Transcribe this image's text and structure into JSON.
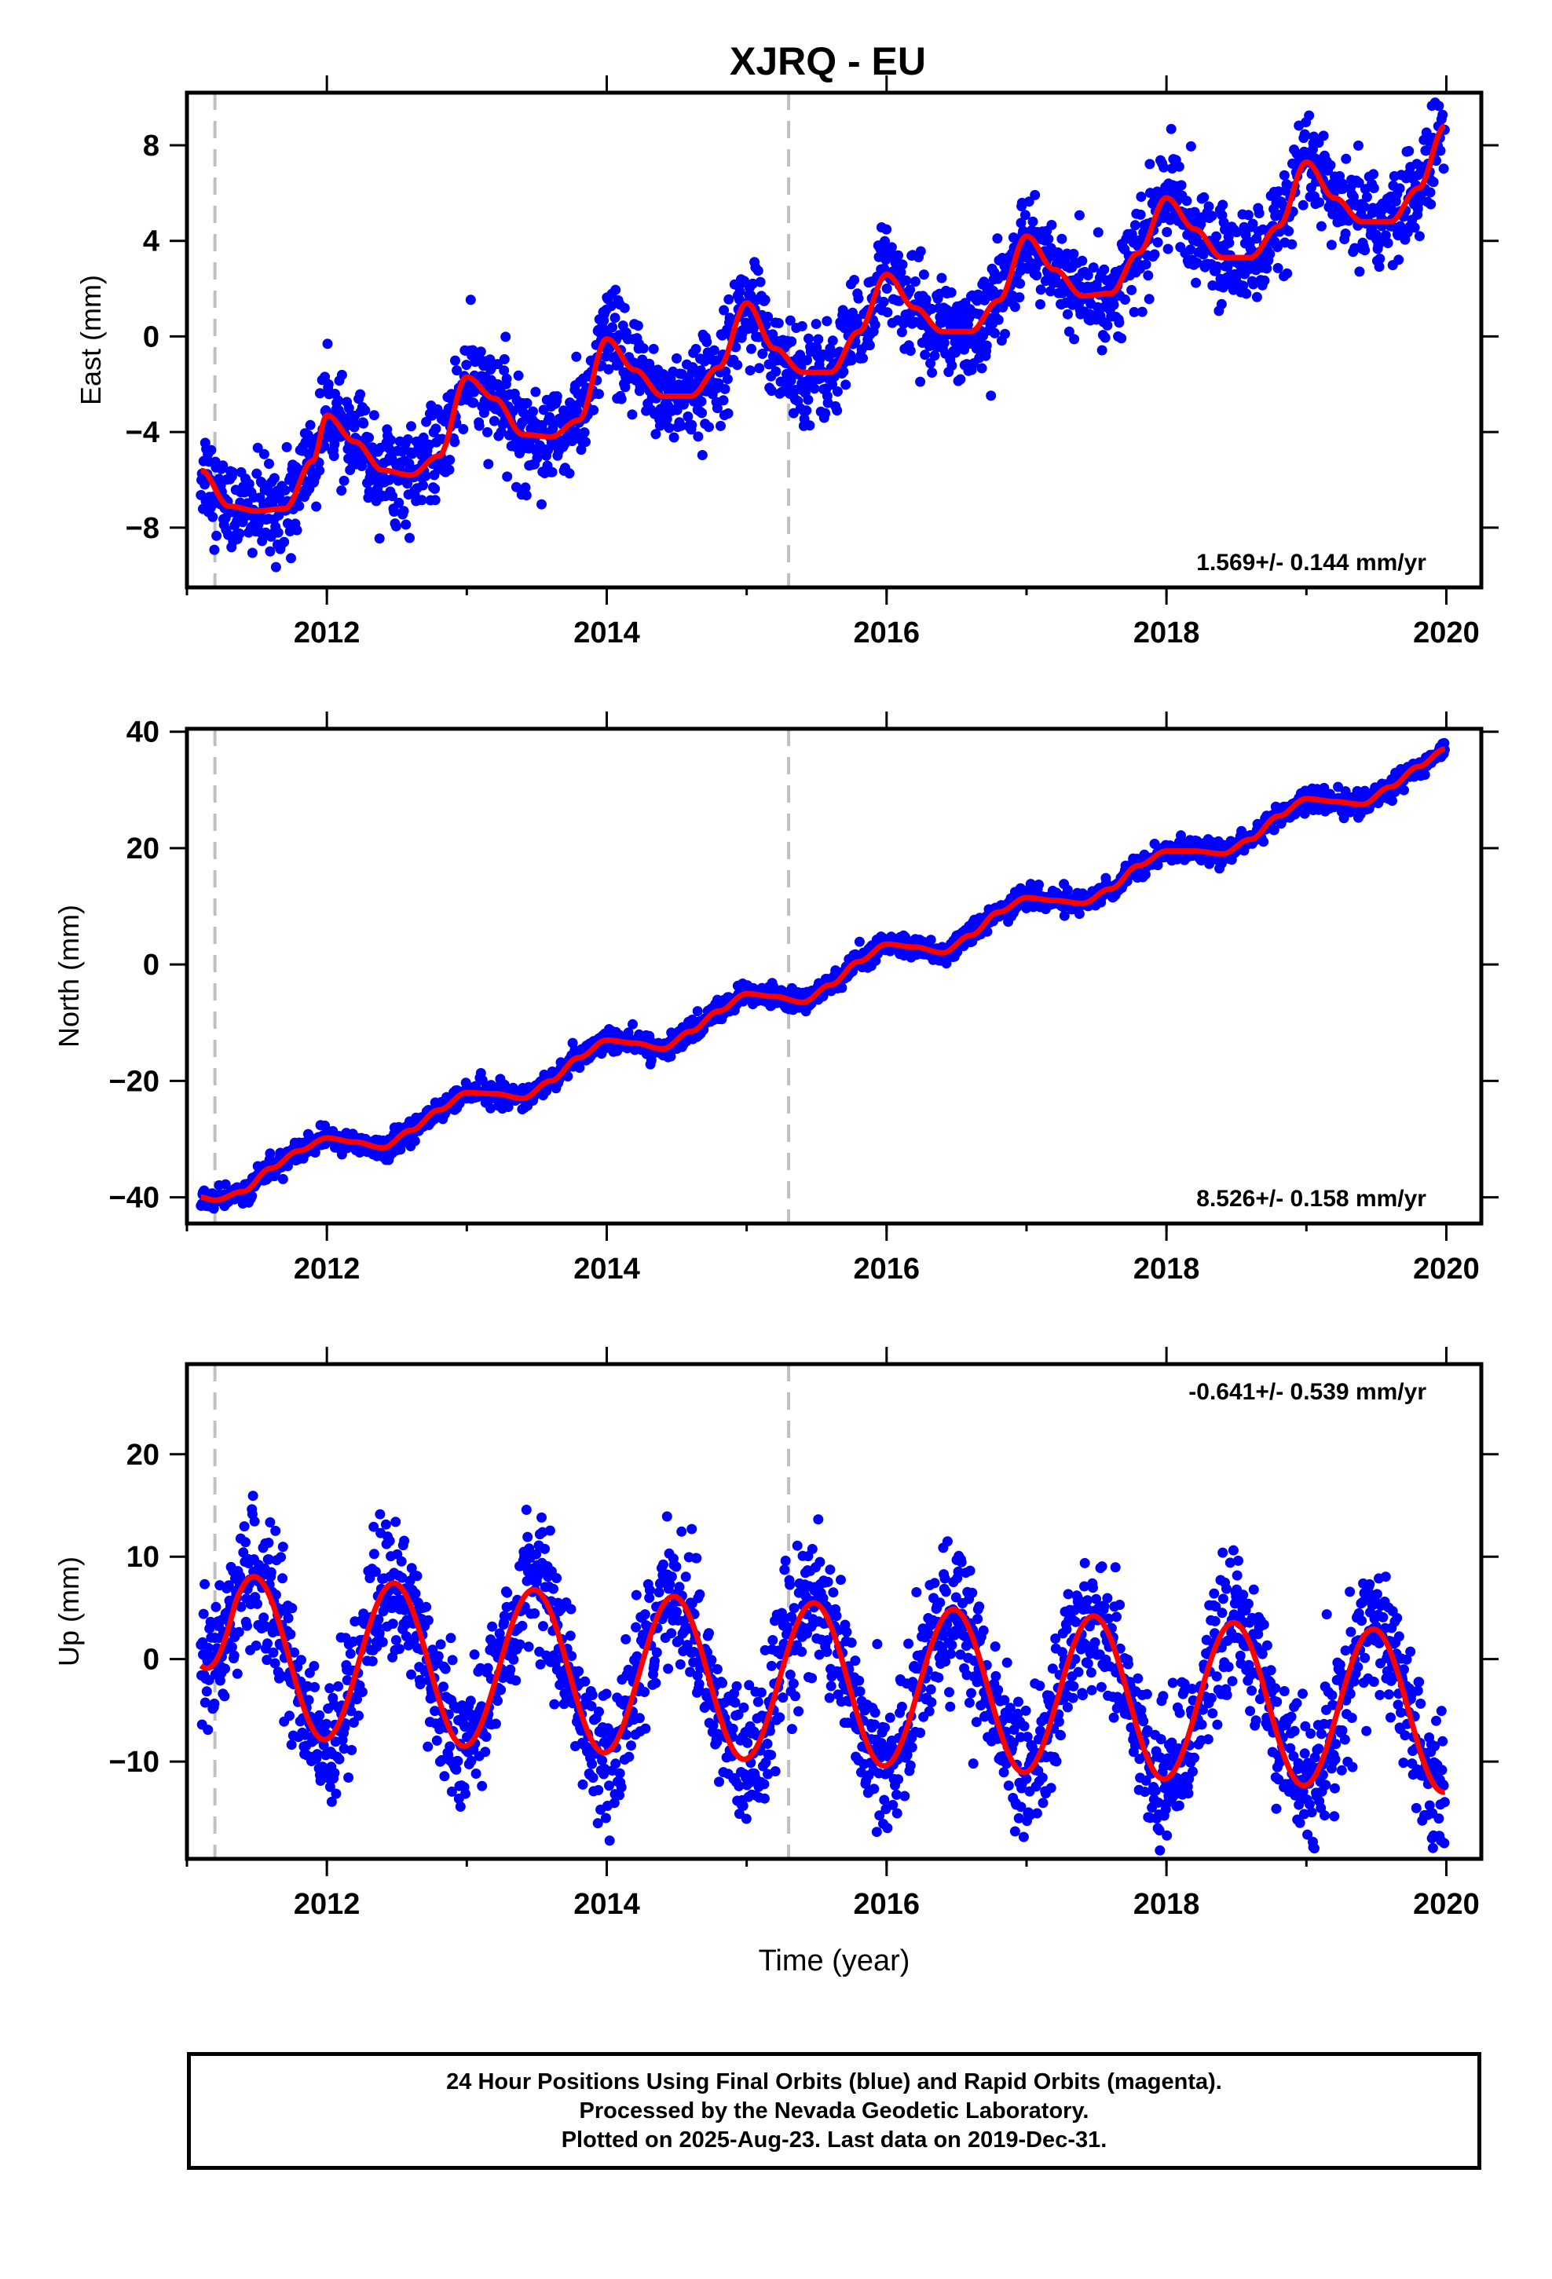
{
  "title": "XJRQ - EU",
  "colors": {
    "final_orbits": "#0000ff",
    "model": "#ff0000",
    "step_marker": "#c0c0c0",
    "frame": "#000000"
  },
  "chart_data": [
    {
      "type": "scatter",
      "ylabel": "East (mm)",
      "xlabel": "",
      "xlim": [
        2011.0,
        2020.25
      ],
      "ylim": [
        -10.5,
        10.2
      ],
      "xticks": [
        2012,
        2014,
        2016,
        2018,
        2020
      ],
      "yticks": [
        -8,
        -4,
        0,
        4,
        8
      ],
      "rate_label": "1.569+/- 0.144 mm/yr",
      "rate_label_position": "bottom-right",
      "step_markers": [
        2011.2,
        2015.3
      ],
      "x_start": 2011.1,
      "x_end": 2019.99,
      "model_curve": {
        "x": [
          2011.1,
          2011.3,
          2011.5,
          2011.7,
          2011.9,
          2012.0,
          2012.2,
          2012.4,
          2012.6,
          2012.8,
          2013.0,
          2013.2,
          2013.4,
          2013.6,
          2013.8,
          2014.0,
          2014.2,
          2014.4,
          2014.6,
          2014.8,
          2015.0,
          2015.2,
          2015.4,
          2015.6,
          2015.8,
          2016.0,
          2016.2,
          2016.4,
          2016.6,
          2016.8,
          2017.0,
          2017.2,
          2017.4,
          2017.6,
          2017.8,
          2018.0,
          2018.2,
          2018.4,
          2018.6,
          2018.8,
          2019.0,
          2019.2,
          2019.4,
          2019.6,
          2019.8,
          2019.99
        ],
        "y": [
          -5.6,
          -7.1,
          -7.3,
          -7.2,
          -5.2,
          -3.3,
          -4.4,
          -5.6,
          -5.8,
          -5.0,
          -1.7,
          -2.6,
          -4.1,
          -4.2,
          -3.5,
          -0.1,
          -1.4,
          -2.5,
          -2.5,
          -1.3,
          1.4,
          -0.5,
          -1.5,
          -1.5,
          0.2,
          2.6,
          1.2,
          0.2,
          0.2,
          1.5,
          4.2,
          2.8,
          1.7,
          1.8,
          3.5,
          5.8,
          4.5,
          3.3,
          3.3,
          4.6,
          7.3,
          5.8,
          4.8,
          4.8,
          6.2,
          8.8
        ]
      }
    },
    {
      "type": "scatter",
      "ylabel": "North (mm)",
      "xlabel": "",
      "xlim": [
        2011.0,
        2020.25
      ],
      "ylim": [
        -44.5,
        40.5
      ],
      "xticks": [
        2012,
        2014,
        2016,
        2018,
        2020
      ],
      "yticks": [
        -40,
        -20,
        0,
        20,
        40
      ],
      "rate_label": "8.526+/- 0.158 mm/yr",
      "rate_label_position": "bottom-right",
      "step_markers": [
        2011.2,
        2015.3
      ],
      "x_start": 2011.1,
      "x_end": 2019.99,
      "model_curve": {
        "x": [
          2011.1,
          2011.2,
          2011.4,
          2011.6,
          2011.8,
          2012.0,
          2012.2,
          2012.4,
          2012.6,
          2012.8,
          2013.0,
          2013.2,
          2013.4,
          2013.6,
          2013.8,
          2014.0,
          2014.2,
          2014.4,
          2014.6,
          2014.8,
          2015.0,
          2015.2,
          2015.4,
          2015.6,
          2015.8,
          2016.0,
          2016.2,
          2016.4,
          2016.6,
          2016.8,
          2017.0,
          2017.2,
          2017.4,
          2017.6,
          2017.8,
          2018.0,
          2018.2,
          2018.4,
          2018.6,
          2018.8,
          2019.0,
          2019.2,
          2019.4,
          2019.6,
          2019.8,
          2019.99
        ],
        "y": [
          -40.0,
          -40.5,
          -39.0,
          -35.0,
          -32.0,
          -29.8,
          -30.5,
          -31.5,
          -28.5,
          -25.0,
          -22.0,
          -22.2,
          -23.0,
          -20.0,
          -16.0,
          -13.0,
          -13.5,
          -14.5,
          -11.5,
          -8.0,
          -5.0,
          -5.5,
          -6.5,
          -3.5,
          0.5,
          3.5,
          3.0,
          2.0,
          5.0,
          9.0,
          11.5,
          11.0,
          10.5,
          13.0,
          17.0,
          19.5,
          19.5,
          19.0,
          21.5,
          25.5,
          28.5,
          28.0,
          27.5,
          30.5,
          34.0,
          37.0
        ]
      }
    },
    {
      "type": "scatter",
      "ylabel": "Up (mm)",
      "xlabel": "Time (year)",
      "xlim": [
        2011.0,
        2020.25
      ],
      "ylim": [
        -19.5,
        28.8
      ],
      "xticks": [
        2012,
        2014,
        2016,
        2018,
        2020
      ],
      "yticks": [
        -10,
        0,
        10,
        20
      ],
      "rate_label": "-0.641+/- 0.539 mm/yr",
      "rate_label_position": "top-right",
      "step_markers": [
        2011.2,
        2015.3
      ],
      "x_start": 2011.1,
      "x_end": 2019.99,
      "seasonal_model": {
        "offset_at_start": 2.5,
        "rate_mm_per_yr": -0.641,
        "amplitude_mm": 7.8,
        "peak_fraction_of_year": 0.48
      }
    }
  ],
  "footer": {
    "line1": "24 Hour Positions Using Final Orbits (blue) and Rapid Orbits (magenta).",
    "line2": "Processed by the Nevada Geodetic Laboratory.",
    "line3": "Plotted on 2025-Aug-23. Last data on 2019-Dec-31."
  }
}
